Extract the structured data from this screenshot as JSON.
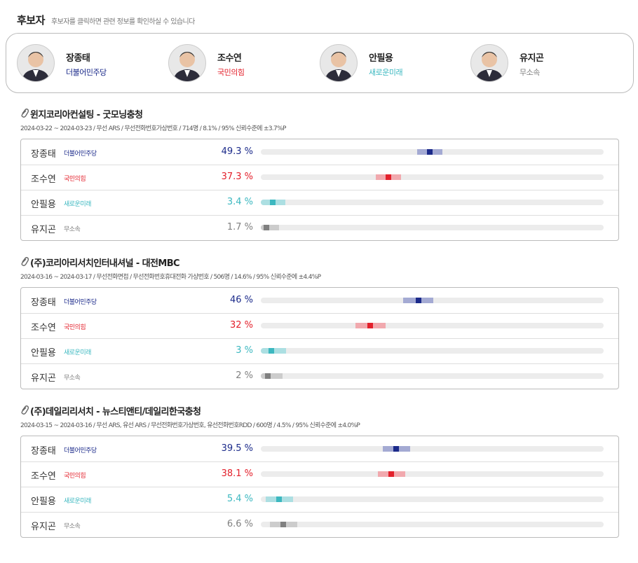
{
  "header": {
    "title": "후보자",
    "subtitle": "후보자를 클릭하면 관련 정보를 확인하실 수 있습니다"
  },
  "candidates": [
    {
      "name": "장종태",
      "party": "더불어민주당",
      "color": "#1b2a8a",
      "band_color": "#a4aad3"
    },
    {
      "name": "조수연",
      "party": "국민의힘",
      "color": "#e3202b",
      "band_color": "#f1a9ae"
    },
    {
      "name": "안필용",
      "party": "새로운미래",
      "color": "#3cb8c0",
      "band_color": "#acdfe2"
    },
    {
      "name": "유지곤",
      "party": "무소속",
      "color": "#808080",
      "band_color": "#cccccc"
    }
  ],
  "polls": [
    {
      "title": "윈지코리아컨설팅 - 굿모닝충청",
      "meta": "2024-03-22 ~ 2024-03-23 / 무선 ARS / 무선전화번호가상번호 / 714명 / 8.1% / 95% 신뢰수준에 ±3.7%P",
      "margin": 3.7,
      "rows": [
        {
          "name": "장종태",
          "party": "더불어민주당",
          "value": 49.3,
          "value_label": "49.3 %"
        },
        {
          "name": "조수연",
          "party": "국민의힘",
          "value": 37.3,
          "value_label": "37.3 %"
        },
        {
          "name": "안필용",
          "party": "새로운미래",
          "value": 3.4,
          "value_label": "3.4 %"
        },
        {
          "name": "유지곤",
          "party": "무소속",
          "value": 1.7,
          "value_label": "1.7 %"
        }
      ]
    },
    {
      "title": "(주)코리아리서치인터내셔널 - 대전MBC",
      "meta": "2024-03-16 ~ 2024-03-17 / 무선전화면접 / 무선전화번호휴대전화 가상번호 / 506명 / 14.6% / 95% 신뢰수준에 ±4.4%P",
      "margin": 4.4,
      "rows": [
        {
          "name": "장종태",
          "party": "더불어민주당",
          "value": 46,
          "value_label": "46 %"
        },
        {
          "name": "조수연",
          "party": "국민의힘",
          "value": 32,
          "value_label": "32 %"
        },
        {
          "name": "안필용",
          "party": "새로운미래",
          "value": 3,
          "value_label": "3 %"
        },
        {
          "name": "유지곤",
          "party": "무소속",
          "value": 2,
          "value_label": "2 %"
        }
      ]
    },
    {
      "title": "(주)데일리리서치 - 뉴스티앤티/데일리한국충청",
      "meta": "2024-03-15 ~ 2024-03-16 / 무선 ARS, 유선 ARS / 무선전화번호가상번호, 유선전화번호RDD / 600명 / 4.5% / 95% 신뢰수준에 ±4.0%P",
      "margin": 4.0,
      "rows": [
        {
          "name": "장종태",
          "party": "더불어민주당",
          "value": 39.5,
          "value_label": "39.5 %"
        },
        {
          "name": "조수연",
          "party": "국민의힘",
          "value": 38.1,
          "value_label": "38.1 %"
        },
        {
          "name": "안필용",
          "party": "새로운미래",
          "value": 5.4,
          "value_label": "5.4 %"
        },
        {
          "name": "유지곤",
          "party": "무소속",
          "value": 6.6,
          "value_label": "6.6 %"
        }
      ]
    }
  ]
}
